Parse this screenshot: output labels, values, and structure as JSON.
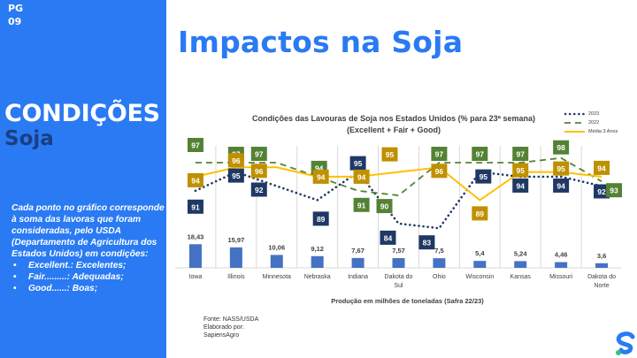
{
  "page": {
    "number_label": "PG",
    "number": "09"
  },
  "sidebar": {
    "title": "CONDIÇÕES",
    "subtitle": "Soja",
    "description": "Cada ponto no gráfico corresponde à soma das lavoras que foram consideradas, pelo USDA (Departamento de Agricultura dos Estados Unidos) em condições:",
    "bullets": [
      "Excellent.: Excelentes;",
      "Fair.........: Adequadas;",
      "Good......: Boas;"
    ]
  },
  "main": {
    "title": "Impactos na Soja",
    "source_lines": [
      "Fonte: NASS/USDA",
      "Elaborado por:",
      "SapiensAgro"
    ]
  },
  "colors": {
    "sidebar_bg": "#2a7af3",
    "series_2023": "#1f3864",
    "series_2022": "#548235",
    "series_media": "#ffc000",
    "label_media": "#bf9000",
    "bars": "#4472c4"
  },
  "chart_data": {
    "type": "bar+line",
    "title": "Condições das Lavouras de Soja nos Estados Unidos (% para 23ª semana)",
    "subtitle": "(Excellent + Fair + Good)",
    "xlabel": "Produção em milhões de toneladas (Safra 22/23)",
    "legend_position": "top-right",
    "categories": [
      "Iowa",
      "Illinois",
      "Minnesota",
      "Nebraska",
      "Indiana",
      "Dakota do Sul",
      "Ohio",
      "Wisconsin",
      "Kansas",
      "Missouri",
      "Dakota do Norte"
    ],
    "category_lines": [
      [
        "Iowa"
      ],
      [
        "Illinois"
      ],
      [
        "Minnesota"
      ],
      [
        "Nebraska"
      ],
      [
        "Indiana"
      ],
      [
        "Dakota do",
        "Sul"
      ],
      [
        "Ohio"
      ],
      [
        "Wisconsin"
      ],
      [
        "Kansas"
      ],
      [
        "Missouri"
      ],
      [
        "Dakota do",
        "Norte"
      ]
    ],
    "bars": {
      "name": "Produção (milhões de toneladas)",
      "values": [
        18.43,
        15.97,
        10.06,
        9.12,
        7.67,
        7.57,
        7.5,
        5.4,
        5.24,
        4.46,
        3.6
      ],
      "labels": [
        "18,43",
        "15,97",
        "10,06",
        "9,12",
        "7,67",
        "7,57",
        "7,5",
        "5,4",
        "5,24",
        "4,46",
        "3,6"
      ]
    },
    "series": [
      {
        "name": "2023",
        "style": "dotted",
        "values": [
          91,
          95,
          92,
          89,
          95,
          84,
          83,
          95,
          94,
          94,
          92
        ]
      },
      {
        "name": "2022",
        "style": "dashed",
        "values": [
          97,
          97,
          97,
          94,
          91,
          90,
          97,
          97,
          97,
          98,
          93
        ]
      },
      {
        "name": "Média 3 Anos",
        "style": "solid",
        "values": [
          94,
          96,
          96,
          94,
          94,
          95,
          96,
          89,
          95,
          95,
          94
        ]
      }
    ],
    "grid": "vertical category separators"
  }
}
